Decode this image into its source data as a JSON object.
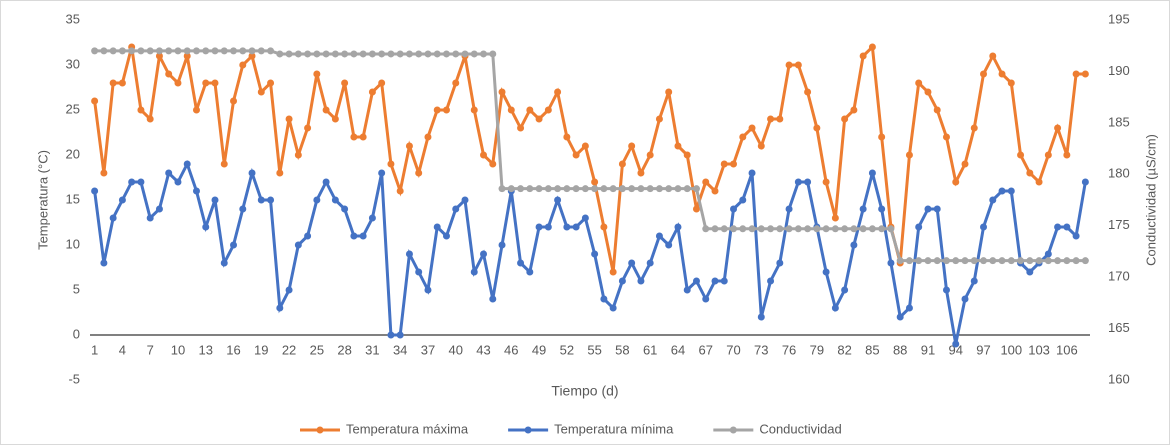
{
  "chart_data": {
    "type": "line",
    "x_label": "Tiempo (d)",
    "y_label": "Temperatura (°C)",
    "y2_label": "Conductividad (µS/cm)",
    "x": [
      1,
      2,
      3,
      4,
      5,
      6,
      7,
      8,
      9,
      10,
      11,
      12,
      13,
      14,
      15,
      16,
      17,
      18,
      19,
      20,
      21,
      22,
      23,
      24,
      25,
      26,
      27,
      28,
      29,
      30,
      31,
      32,
      33,
      34,
      35,
      36,
      37,
      38,
      39,
      40,
      41,
      42,
      43,
      44,
      45,
      46,
      47,
      48,
      49,
      50,
      51,
      52,
      53,
      54,
      55,
      56,
      57,
      58,
      59,
      60,
      61,
      62,
      63,
      64,
      65,
      66,
      67,
      68,
      69,
      70,
      71,
      72,
      73,
      74,
      75,
      76,
      77,
      78,
      79,
      80,
      81,
      82,
      83,
      84,
      85,
      86,
      87,
      88,
      89,
      90,
      91,
      92,
      93,
      94,
      95,
      96,
      97,
      98,
      99,
      100,
      101,
      102,
      103,
      104,
      105,
      106,
      107,
      108
    ],
    "xlim": [
      0.5,
      108.5
    ],
    "xticks": [
      1,
      4,
      7,
      10,
      13,
      16,
      19,
      22,
      25,
      28,
      31,
      34,
      37,
      40,
      43,
      46,
      49,
      52,
      55,
      58,
      61,
      64,
      67,
      70,
      73,
      76,
      79,
      82,
      85,
      88,
      91,
      94,
      97,
      100,
      103,
      106
    ],
    "ylim": [
      -5,
      35
    ],
    "yticks": [
      -5,
      0,
      5,
      10,
      15,
      20,
      25,
      30,
      35
    ],
    "y2lim": [
      160,
      195
    ],
    "y2ticks": [
      160,
      165,
      170,
      175,
      180,
      185,
      190,
      195
    ],
    "grid": false,
    "legend": "bottom",
    "series": [
      {
        "name": "Temperatura máxima",
        "color": "#ED7D31",
        "values": [
          26,
          18,
          28,
          28,
          32,
          25,
          24,
          31,
          29,
          28,
          31,
          25,
          28,
          28,
          19,
          26,
          30,
          31,
          27,
          28,
          18,
          24,
          20,
          23,
          29,
          25,
          24,
          28,
          22,
          22,
          27,
          28,
          19,
          16,
          21,
          18,
          22,
          25,
          25,
          28,
          31,
          25,
          20,
          19,
          27,
          25,
          23,
          25,
          24,
          25,
          27,
          22,
          20,
          21,
          17,
          12,
          7,
          19,
          21,
          18,
          20,
          24,
          27,
          21,
          20,
          14,
          17,
          16,
          19,
          19,
          22,
          23,
          21,
          24,
          24,
          30,
          30,
          27,
          23,
          17,
          13,
          24,
          25,
          31,
          32,
          22,
          12,
          8,
          20,
          28,
          27,
          25,
          22,
          17,
          19,
          23,
          29,
          31,
          29,
          28,
          20,
          18,
          17,
          20,
          23,
          20,
          29,
          29
        ]
      },
      {
        "name": "Temperatura mínima",
        "color": "#4472C4",
        "values": [
          16,
          8,
          13,
          15,
          17,
          17,
          13,
          14,
          18,
          17,
          19,
          16,
          12,
          15,
          8,
          10,
          14,
          18,
          15,
          15,
          3,
          5,
          10,
          11,
          15,
          17,
          15,
          14,
          11,
          11,
          13,
          18,
          0,
          0,
          9,
          7,
          5,
          12,
          11,
          14,
          15,
          7,
          9,
          4,
          10,
          16,
          8,
          7,
          12,
          12,
          15,
          12,
          12,
          13,
          9,
          4,
          3,
          6,
          8,
          6,
          8,
          11,
          10,
          12,
          5,
          6,
          4,
          6,
          6,
          14,
          15,
          18,
          2,
          6,
          8,
          14,
          17,
          17,
          12,
          7,
          3,
          5,
          10,
          14,
          18,
          14,
          8,
          2,
          3,
          12,
          14,
          14,
          5,
          -1,
          4,
          6,
          12,
          15,
          16,
          16,
          8,
          7,
          8,
          9,
          12,
          12,
          11,
          17
        ]
      },
      {
        "name": "Conductividad",
        "color": "#A5A5A5",
        "axis": "y2",
        "values": [
          192,
          192,
          192,
          192,
          192,
          192,
          192,
          192,
          192,
          192,
          192,
          192,
          192,
          192,
          192,
          192,
          192,
          192,
          192,
          192,
          191.7,
          191.7,
          191.7,
          191.7,
          191.7,
          191.7,
          191.7,
          191.7,
          191.7,
          191.7,
          191.7,
          191.7,
          191.7,
          191.7,
          191.7,
          191.7,
          191.7,
          191.7,
          191.7,
          191.7,
          191.7,
          191.7,
          191.7,
          191.7,
          178.6,
          178.6,
          178.6,
          178.6,
          178.6,
          178.6,
          178.6,
          178.6,
          178.6,
          178.6,
          178.6,
          178.6,
          178.6,
          178.6,
          178.6,
          178.6,
          178.6,
          178.6,
          178.6,
          178.6,
          178.6,
          178.6,
          174.7,
          174.7,
          174.7,
          174.7,
          174.7,
          174.7,
          174.7,
          174.7,
          174.7,
          174.7,
          174.7,
          174.7,
          174.7,
          174.7,
          174.7,
          174.7,
          174.7,
          174.7,
          174.7,
          174.7,
          174.7,
          171.6,
          171.6,
          171.6,
          171.6,
          171.6,
          171.6,
          171.6,
          171.6,
          171.6,
          171.6,
          171.6,
          171.6,
          171.6,
          171.6,
          171.6,
          171.6,
          171.6,
          171.6,
          171.6,
          171.6,
          171.6
        ]
      }
    ]
  }
}
